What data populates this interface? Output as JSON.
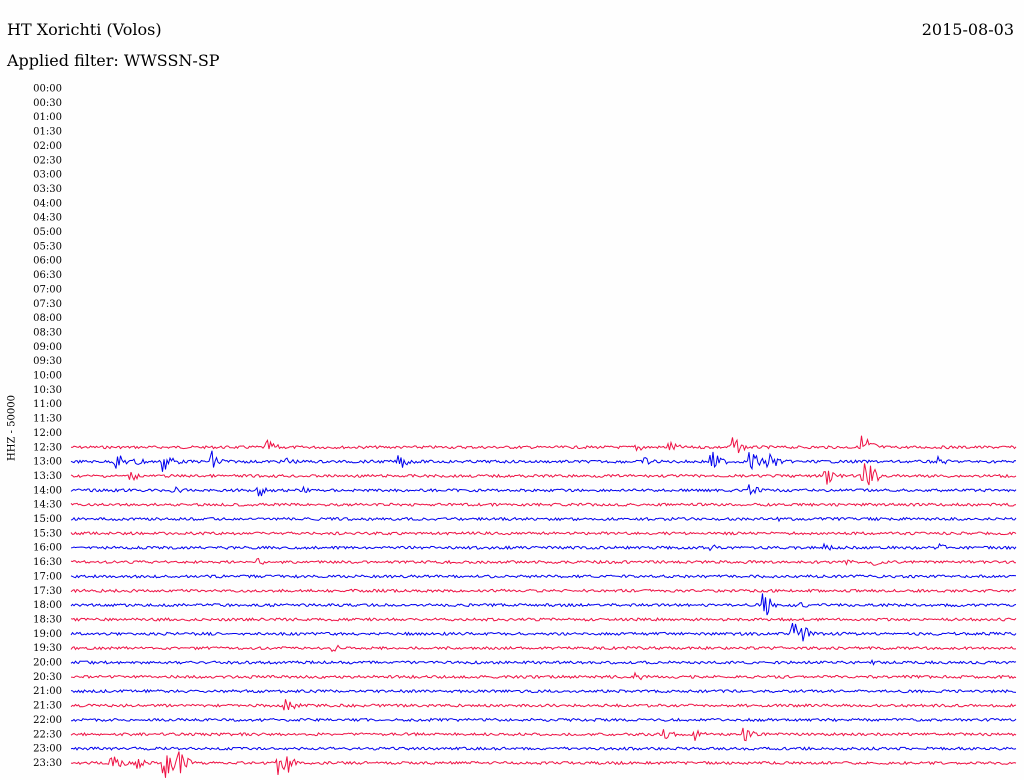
{
  "header": {
    "station": "HT Xorichti (Volos)",
    "date": "2015-08-03",
    "filter": "Applied filter: WWSSN-SP",
    "channel_label": "HHZ - 50000"
  },
  "colors": {
    "odd_trace": "#0000ee",
    "even_trace": "#ee1144",
    "background": "#fefefe",
    "text": "#000000"
  },
  "chart_data": {
    "type": "line",
    "title": "HT Xorichti (Volos)",
    "ylabel": "HHZ - 50000",
    "row_labels": [
      "00:00",
      "00:30",
      "01:00",
      "01:30",
      "02:00",
      "02:30",
      "03:00",
      "03:30",
      "04:00",
      "04:30",
      "05:00",
      "05:30",
      "06:00",
      "06:30",
      "07:00",
      "07:30",
      "08:00",
      "08:30",
      "09:00",
      "09:30",
      "10:00",
      "10:30",
      "11:00",
      "11:30",
      "12:00",
      "12:30",
      "13:00",
      "13:30",
      "14:00",
      "14:30",
      "15:00",
      "15:30",
      "16:00",
      "16:30",
      "17:00",
      "17:30",
      "18:00",
      "18:30",
      "19:00",
      "19:30",
      "20:00",
      "20:30",
      "21:00",
      "21:30",
      "22:00",
      "22:30",
      "23:00",
      "23:30"
    ],
    "traces": [
      {
        "row": "12:30",
        "start_fraction": 0.0,
        "color": "red",
        "events": [
          [
            0.21,
            7
          ],
          [
            0.6,
            5
          ],
          [
            0.635,
            6
          ],
          [
            0.7,
            12
          ],
          [
            0.84,
            15
          ]
        ]
      },
      {
        "row": "13:00",
        "start_fraction": 0.0,
        "color": "blue",
        "events": [
          [
            0.05,
            8
          ],
          [
            0.07,
            6
          ],
          [
            0.1,
            12
          ],
          [
            0.15,
            12
          ],
          [
            0.23,
            5
          ],
          [
            0.35,
            7
          ],
          [
            0.61,
            5
          ],
          [
            0.68,
            10
          ],
          [
            0.72,
            12
          ],
          [
            0.74,
            10
          ],
          [
            0.92,
            5
          ]
        ]
      },
      {
        "row": "13:30",
        "start_fraction": 0.0,
        "color": "red",
        "events": [
          [
            0.065,
            5
          ],
          [
            0.8,
            9
          ],
          [
            0.84,
            22
          ]
        ]
      },
      {
        "row": "14:00",
        "start_fraction": 0.0,
        "color": "blue",
        "events": [
          [
            0.11,
            4
          ],
          [
            0.2,
            7
          ],
          [
            0.25,
            4
          ],
          [
            0.72,
            6
          ]
        ]
      },
      {
        "row": "14:30",
        "start_fraction": 0.0,
        "color": "red",
        "events": []
      },
      {
        "row": "15:00",
        "start_fraction": 0.0,
        "color": "blue",
        "events": [
          [
            0.75,
            3
          ]
        ]
      },
      {
        "row": "15:30",
        "start_fraction": 0.0,
        "color": "red",
        "events": []
      },
      {
        "row": "16:00",
        "start_fraction": 0.0,
        "color": "blue",
        "events": [
          [
            0.68,
            3
          ],
          [
            0.8,
            4
          ],
          [
            0.92,
            5
          ]
        ]
      },
      {
        "row": "16:30",
        "start_fraction": 0.0,
        "color": "red",
        "events": [
          [
            0.2,
            4
          ],
          [
            0.82,
            4
          ],
          [
            0.85,
            4
          ]
        ]
      },
      {
        "row": "17:00",
        "start_fraction": 0.0,
        "color": "blue",
        "events": []
      },
      {
        "row": "17:30",
        "start_fraction": 0.0,
        "color": "red",
        "events": []
      },
      {
        "row": "18:00",
        "start_fraction": 0.0,
        "color": "blue",
        "events": [
          [
            0.735,
            12
          ],
          [
            0.775,
            3
          ]
        ]
      },
      {
        "row": "18:30",
        "start_fraction": 0.0,
        "color": "red",
        "events": []
      },
      {
        "row": "19:00",
        "start_fraction": 0.0,
        "color": "blue",
        "events": [
          [
            0.765,
            12
          ],
          [
            0.77,
            15
          ]
        ]
      },
      {
        "row": "19:30",
        "start_fraction": 0.0,
        "color": "red",
        "events": [
          [
            0.28,
            4
          ]
        ]
      },
      {
        "row": "20:00",
        "start_fraction": 0.0,
        "color": "blue",
        "events": [
          [
            0.85,
            3
          ]
        ]
      },
      {
        "row": "20:30",
        "start_fraction": 0.0,
        "color": "red",
        "events": [
          [
            0.6,
            4
          ]
        ]
      },
      {
        "row": "21:00",
        "start_fraction": 0.0,
        "color": "blue",
        "events": []
      },
      {
        "row": "21:30",
        "start_fraction": 0.0,
        "color": "red",
        "events": [
          [
            0.225,
            12
          ]
        ]
      },
      {
        "row": "22:00",
        "start_fraction": 0.0,
        "color": "blue",
        "events": []
      },
      {
        "row": "22:30",
        "start_fraction": 0.0,
        "color": "red",
        "events": [
          [
            0.63,
            7
          ],
          [
            0.66,
            7
          ],
          [
            0.715,
            7
          ]
        ]
      },
      {
        "row": "23:00",
        "start_fraction": 0.0,
        "color": "blue",
        "events": []
      },
      {
        "row": "23:30",
        "start_fraction": 0.0,
        "color": "red",
        "events": [
          [
            0.045,
            10
          ],
          [
            0.07,
            6
          ],
          [
            0.1,
            18
          ],
          [
            0.115,
            12
          ],
          [
            0.22,
            17
          ],
          [
            0.23,
            10
          ]
        ]
      }
    ]
  }
}
